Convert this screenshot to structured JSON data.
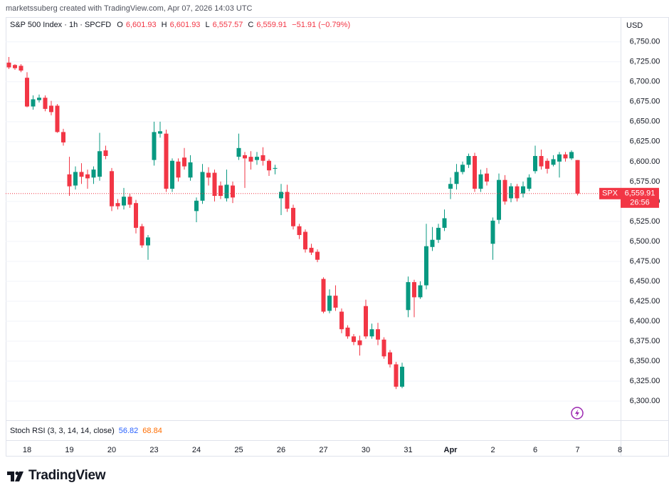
{
  "chart_data": {
    "type": "candlestick",
    "credit": "marketssuberg created with TradingView.com, Apr 07, 2026 14:03 UTC",
    "legend": {
      "symbol": "S&P 500 Index · 1h · SPCFD",
      "items": [
        {
          "key": "O",
          "value": "6,601.93"
        },
        {
          "key": "H",
          "value": "6,601.93"
        },
        {
          "key": "L",
          "value": "6,557.57"
        },
        {
          "key": "C",
          "value": "6,559.91"
        }
      ],
      "change": "−51.91 (−0.79%)"
    },
    "currency": "USD",
    "up_color": "#089981",
    "down_color": "#f23645",
    "grid": true,
    "ylim": [
      6276,
      6781
    ],
    "yticks": [
      {
        "value": 6300,
        "label": "6,300.00"
      },
      {
        "value": 6325,
        "label": "6,325.00"
      },
      {
        "value": 6350,
        "label": "6,350.00"
      },
      {
        "value": 6375,
        "label": "6,375.00"
      },
      {
        "value": 6400,
        "label": "6,400.00"
      },
      {
        "value": 6425,
        "label": "6,425.00"
      },
      {
        "value": 6450,
        "label": "6,450.00"
      },
      {
        "value": 6475,
        "label": "6,475.00"
      },
      {
        "value": 6500,
        "label": "6,500.00"
      },
      {
        "value": 6525,
        "label": "6,525.00"
      },
      {
        "value": 6550,
        "label": "6,550.00"
      },
      {
        "value": 6575,
        "label": "6,575.00"
      },
      {
        "value": 6600,
        "label": "6,600.00"
      },
      {
        "value": 6625,
        "label": "6,625.00"
      },
      {
        "value": 6650,
        "label": "6,650.00"
      },
      {
        "value": 6675,
        "label": "6,675.00"
      },
      {
        "value": 6700,
        "label": "6,700.00"
      },
      {
        "value": 6725,
        "label": "6,725.00"
      },
      {
        "value": 6750,
        "label": "6,750.00"
      }
    ],
    "categories": [
      null,
      null,
      null,
      "18",
      null,
      null,
      null,
      null,
      null,
      null,
      "19",
      null,
      null,
      null,
      null,
      null,
      null,
      "20",
      null,
      null,
      null,
      null,
      null,
      null,
      "23",
      null,
      null,
      null,
      null,
      null,
      null,
      "24",
      null,
      null,
      null,
      null,
      null,
      null,
      "25",
      null,
      null,
      null,
      null,
      null,
      null,
      "26",
      null,
      null,
      null,
      null,
      null,
      null,
      "27",
      null,
      null,
      null,
      null,
      null,
      null,
      "30",
      null,
      null,
      null,
      null,
      null,
      null,
      "31",
      null,
      null,
      null,
      null,
      null,
      null,
      "Apr",
      null,
      null,
      null,
      null,
      null,
      null,
      "2",
      null,
      null,
      null,
      null,
      null,
      null,
      "6",
      null,
      null,
      null,
      null,
      null,
      null,
      "7",
      null,
      null,
      null,
      null,
      null,
      null,
      "8"
    ],
    "open": [
      6724,
      6721,
      6720,
      6705,
      6669,
      6677,
      6680,
      6670,
      6670,
      6637,
      6584,
      6570,
      6587,
      6584,
      6580,
      6581,
      6614,
      6588,
      6548,
      6545,
      6556,
      6548,
      6519,
      6495,
      6602,
      6635,
      6635,
      6566,
      6600,
      6605,
      6580,
      6538,
      6551,
      6586,
      6586,
      6570,
      6554,
      6570,
      6606,
      6608,
      6606,
      6602,
      6608,
      6601,
      6591,
      6554,
      6562,
      6542,
      6519,
      6512,
      6492,
      6487,
      6453,
      6413,
      6432,
      6412,
      6392,
      6381,
      6376,
      6419,
      6381,
      6390,
      6377,
      6361,
      6346,
      6318,
      6414,
      6449,
      6430,
      6445,
      6493,
      6502,
      6517,
      6566,
      6572,
      6587,
      6596,
      6607,
      6566,
      6585,
      6497,
      6527,
      6577,
      6554,
      6569,
      6560,
      6566,
      6588,
      6607,
      6601,
      6596,
      6600,
      6609,
      6604,
      6601.93,
      null,
      null,
      null,
      null,
      null,
      null,
      null
    ],
    "high": [
      6731,
      6722,
      6722,
      6712,
      6683,
      6684,
      6683,
      6676,
      6672,
      6641,
      6606,
      6594,
      6598,
      6590,
      6594,
      6636,
      6620,
      6592,
      6553,
      6567,
      6560,
      6552,
      6522,
      6508,
      6650,
      6650,
      6640,
      6604,
      6604,
      6617,
      6608,
      6555,
      6597,
      6593,
      6590,
      6575,
      6590,
      6575,
      6635,
      6612,
      6613,
      6612,
      6618,
      6603,
      6596,
      6572,
      6571,
      6546,
      6522,
      6515,
      6497,
      6490,
      6455,
      6440,
      6445,
      6416,
      6395,
      6384,
      6382,
      6427,
      6397,
      6398,
      6380,
      6364,
      6349,
      6348,
      6456,
      6452,
      6450,
      6522,
      6518,
      6522,
      6540,
      6580,
      6597,
      6600,
      6610,
      6611,
      6590,
      6592,
      6530,
      6585,
      6583,
      6573,
      6572,
      6575,
      6584,
      6620,
      6615,
      6604,
      6608,
      6612,
      6612,
      6614,
      6601.93,
      null,
      null,
      null,
      null,
      null,
      null,
      null
    ],
    "low": [
      6716,
      6715,
      6712,
      6668,
      6665,
      6674,
      6663,
      6658,
      6636,
      6620,
      6557,
      6565,
      6572,
      6566,
      6572,
      6576,
      6603,
      6538,
      6540,
      6540,
      6542,
      6510,
      6492,
      6477,
      6595,
      6630,
      6562,
      6562,
      6575,
      6590,
      6576,
      6524,
      6547,
      6570,
      6550,
      6553,
      6550,
      6548,
      6602,
      6567,
      6590,
      6596,
      6595,
      6582,
      6584,
      6533,
      6537,
      6515,
      6503,
      6486,
      6483,
      6474,
      6410,
      6410,
      6413,
      6385,
      6378,
      6370,
      6357,
      6378,
      6378,
      6370,
      6353,
      6342,
      6315,
      6316,
      6405,
      6405,
      6428,
      6440,
      6488,
      6498,
      6513,
      6553,
      6565,
      6584,
      6592,
      6562,
      6562,
      6570,
      6477,
      6522,
      6546,
      6549,
      6550,
      6555,
      6563,
      6585,
      6590,
      6585,
      6594,
      6580,
      6600,
      6602,
      6557.57,
      null,
      null,
      null,
      null,
      null,
      null,
      null
    ],
    "close": [
      6718,
      6717,
      6714,
      6669,
      6678,
      6680,
      6666,
      6662,
      6637,
      6624,
      6569,
      6587,
      6581,
      6579,
      6590,
      6613,
      6607,
      6544,
      6544,
      6556,
      6546,
      6517,
      6495,
      6505,
      6637,
      6638,
      6566,
      6601,
      6580,
      6594,
      6599,
      6551,
      6587,
      6580,
      6557,
      6557,
      6571,
      6555,
      6617,
      6604,
      6600,
      6606,
      6601,
      6589,
      6592,
      6562,
      6541,
      6519,
      6508,
      6490,
      6486,
      6477,
      6412,
      6432,
      6417,
      6390,
      6381,
      6374,
      6370,
      6381,
      6390,
      6377,
      6356,
      6346,
      6318,
      6343,
      6449,
      6430,
      6445,
      6494,
      6502,
      6517,
      6529,
      6572,
      6587,
      6596,
      6607,
      6566,
      6584,
      6575,
      6526,
      6577,
      6550,
      6569,
      6554,
      6569,
      6580,
      6607,
      6594,
      6591,
      6603,
      6609,
      6604,
      6612,
      6559.91,
      null,
      null,
      null,
      null,
      null,
      null,
      null
    ],
    "last_price": {
      "symbol": "SPX",
      "label": "6,559.91",
      "countdown": "26:56"
    },
    "indicator": {
      "name": "Stoch RSI (3, 3, 14, 14, close)",
      "k": "56.82",
      "d": "68.84"
    }
  },
  "footer": {
    "brand": "TradingView"
  }
}
